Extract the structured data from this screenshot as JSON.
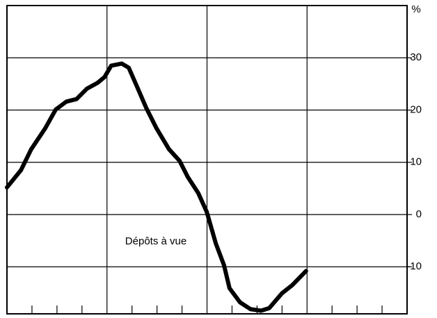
{
  "chart_data": {
    "type": "line",
    "y_label": "%",
    "annotation": "Dépôts à vue",
    "x": [
      0,
      0.56,
      0.97,
      1.53,
      1.95,
      2.37,
      2.78,
      3.2,
      3.62,
      3.9,
      4.17,
      4.59,
      4.87,
      5.2,
      5.56,
      5.98,
      6.48,
      6.9,
      7.23,
      7.65,
      7.99,
      8.35,
      8.68,
      8.9,
      9.32,
      9.74,
      10.16,
      10.49,
      10.99,
      11.41,
      11.96
    ],
    "series": [
      {
        "name": "Dépôts à vue",
        "color": "#000000",
        "values": [
          5.2,
          8.5,
          12.5,
          16.5,
          20.1,
          21.6,
          22.1,
          24.1,
          25.2,
          26.3,
          28.5,
          28.9,
          28.1,
          24.5,
          20.5,
          16.5,
          12.5,
          10.3,
          7.2,
          4.1,
          0.5,
          -5.5,
          -9.7,
          -14.1,
          -16.8,
          -18.1,
          -18.4,
          -17.9,
          -15.1,
          -13.5,
          -10.8
        ]
      }
    ],
    "xlim": [
      0,
      16
    ],
    "xticks": [
      4,
      8,
      12
    ],
    "xminorticks": [
      1,
      2,
      3,
      5,
      6,
      7,
      9,
      10,
      11,
      13,
      14,
      15
    ],
    "ylim": [
      -19,
      40
    ],
    "yticks": [
      -10,
      0,
      10,
      20,
      30
    ],
    "grid": true,
    "y_axis_side": "right"
  }
}
